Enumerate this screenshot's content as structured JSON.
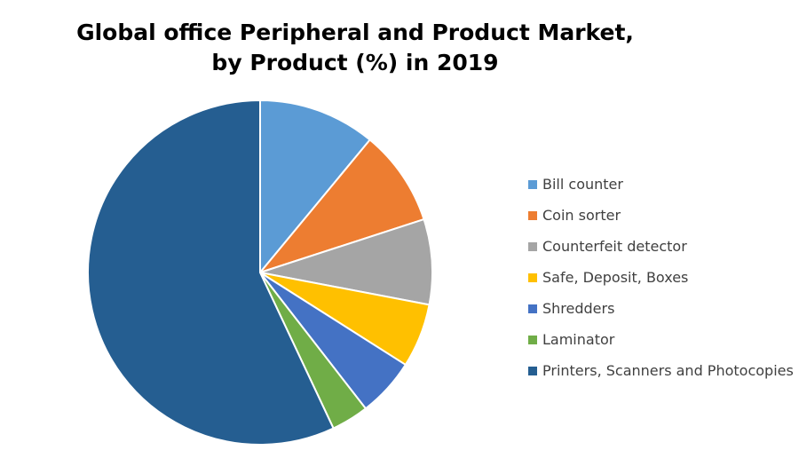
{
  "chart_data": {
    "type": "pie",
    "title_lines": [
      "Global office Peripheral and Product Market,",
      "by Product (%) in 2019"
    ],
    "slices": [
      {
        "label": "Bill counter",
        "value": 11,
        "color": "#5B9BD5"
      },
      {
        "label": "Coin sorter",
        "value": 9,
        "color": "#ED7D31"
      },
      {
        "label": "Counterfeit detector",
        "value": 8,
        "color": "#A5A5A5"
      },
      {
        "label": "Safe, Deposit, Boxes",
        "value": 6,
        "color": "#FFC000"
      },
      {
        "label": "Shredders",
        "value": 5.5,
        "color": "#4472C4"
      },
      {
        "label": "Laminator",
        "value": 3.5,
        "color": "#70AD47"
      },
      {
        "label": "Printers, Scanners and Photocopies",
        "value": 57,
        "color": "#255E91"
      }
    ],
    "start_angle": "12 o'clock",
    "direction": "clockwise",
    "legend_position": "right"
  }
}
